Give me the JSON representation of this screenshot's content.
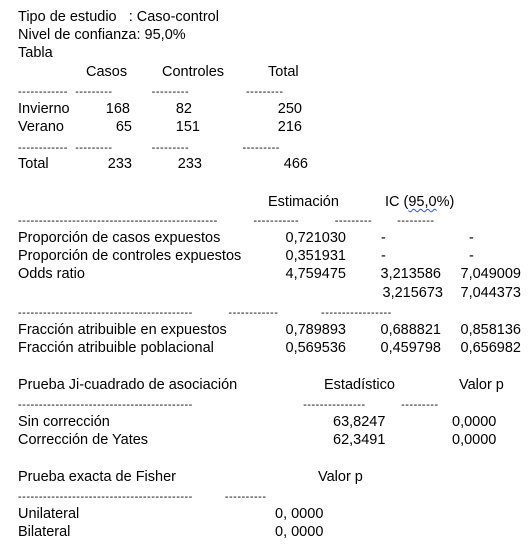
{
  "header": {
    "tipo": "Tipo de estudio   : Caso-control",
    "nivel": "Nivel de confianza: 95,0%",
    "tabla": "Tabla"
  },
  "table": {
    "headers": [
      "Casos",
      "Controles",
      "Total"
    ],
    "rows": [
      {
        "label": "Invierno",
        "values": [
          "168",
          "82",
          "250"
        ]
      },
      {
        "label": "Verano",
        "values": [
          "65",
          "151",
          "216"
        ]
      }
    ],
    "total": {
      "label": "Total",
      "values": [
        "233",
        "233",
        "466"
      ]
    }
  },
  "estimates": {
    "col_estimacion": "Estimación",
    "col_ic_pre": "IC (",
    "col_ic_mid": "95,0",
    "col_ic_post": "%)",
    "rows": [
      {
        "label": "Proporción de casos expuestos",
        "est": "0,721030",
        "lo": "-",
        "hi": "-"
      },
      {
        "label": "Proporción de controles expuestos",
        "est": "0,351931",
        "lo": "-",
        "hi": "-"
      },
      {
        "label": "Odds ratio",
        "est": "4,759475",
        "lo": "3,213586",
        "hi": "7,049009"
      },
      {
        "label": "",
        "est": "",
        "lo": "3,215673",
        "hi": "7,044373"
      }
    ],
    "fraction_rows": [
      {
        "label": "Fracción atribuible en expuestos",
        "est": "0,789893",
        "lo": "0,688821",
        "hi": "0,858136"
      },
      {
        "label": "Fracción atribuible poblacional",
        "est": "0,569536",
        "lo": "0,459798",
        "hi": "0,656982"
      }
    ]
  },
  "chi": {
    "title": "Prueba Ji-cuadrado de asociación",
    "col_stat": "Estadístico",
    "col_p": "Valor p",
    "rows": [
      {
        "label": "Sin corrección",
        "stat": "63,8247",
        "p": "0,0000"
      },
      {
        "label": "Corrección de Yates",
        "stat": "62,3491",
        "p": "0,0000"
      }
    ]
  },
  "fisher": {
    "title": "Prueba exacta de Fisher",
    "col_p": "Valor p",
    "rows": [
      {
        "label": "Unilateral",
        "p": "0, 0000"
      },
      {
        "label": "Bilateral",
        "p": "0, 0000"
      }
    ]
  }
}
